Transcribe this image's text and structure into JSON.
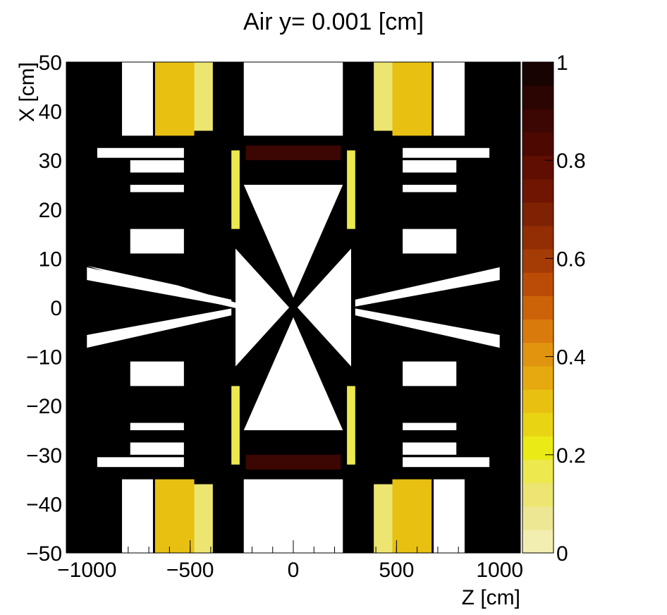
{
  "chart_data": {
    "type": "heatmap",
    "title": "Air y=  0.001 [cm]",
    "xlabel": "Z [cm]",
    "ylabel": "X [cm]",
    "xlim": [
      -1100,
      1100
    ],
    "ylim": [
      -50,
      50
    ],
    "x_ticks": [
      -1000,
      -500,
      0,
      500,
      1000
    ],
    "x_tick_labels": [
      "−1000",
      "−500",
      "0",
      "500",
      "1000"
    ],
    "y_ticks": [
      50,
      40,
      30,
      20,
      10,
      0,
      -10,
      -20,
      -30,
      -40,
      -50
    ],
    "y_tick_labels": [
      "50",
      "40",
      "30",
      "20",
      "10",
      "0",
      "−10",
      "−20",
      "−30",
      "−40",
      "−50"
    ],
    "colorbar": {
      "range": [
        0,
        1
      ],
      "ticks": [
        1,
        0.8,
        0.6,
        0.4,
        0.2,
        0
      ],
      "tick_labels": [
        "1",
        "0.8",
        "0.6",
        "0.4",
        "0.2",
        "0"
      ],
      "colors": [
        "#f2eeb0",
        "#ede793",
        "#ece571",
        "#ede84e",
        "#eaea17",
        "#e9d414",
        "#e8c012",
        "#e6a90f",
        "#e1940e",
        "#d97b0c",
        "#cd6309",
        "#bb4c07",
        "#a63c05",
        "#922d04",
        "#7e2203",
        "#6f1502",
        "#5f0e01",
        "#4d0801",
        "#3c0602",
        "#2a0502",
        "#170302"
      ]
    },
    "regions": [
      {
        "z": [
          -1100,
          1100
        ],
        "x": [
          -50,
          50
        ],
        "value": 1
      },
      {
        "z": [
          -240,
          240
        ],
        "x": [
          35,
          50
        ],
        "value": 0
      },
      {
        "z": [
          -240,
          240
        ],
        "x": [
          -50,
          -35
        ],
        "value": 0
      },
      {
        "z": [
          -670,
          -480
        ],
        "x": [
          35,
          50
        ],
        "value": 0.3
      },
      {
        "z": [
          480,
          670
        ],
        "x": [
          35,
          50
        ],
        "value": 0.3
      },
      {
        "z": [
          -670,
          -480
        ],
        "x": [
          -50,
          -35
        ],
        "value": 0.3
      },
      {
        "z": [
          480,
          670
        ],
        "x": [
          -50,
          -35
        ],
        "value": 0.3
      },
      {
        "z": [
          -830,
          -680
        ],
        "x": [
          35,
          50
        ],
        "value": 0
      },
      {
        "z": [
          680,
          830
        ],
        "x": [
          35,
          50
        ],
        "value": 0
      },
      {
        "z": [
          -830,
          -680
        ],
        "x": [
          -50,
          -35
        ],
        "value": 0
      },
      {
        "z": [
          680,
          830
        ],
        "x": [
          -50,
          -35
        ],
        "value": 0
      },
      {
        "z": [
          -480,
          -390
        ],
        "x": [
          36,
          50
        ],
        "value": 0.1
      },
      {
        "z": [
          390,
          480
        ],
        "x": [
          36,
          50
        ],
        "value": 0.1
      },
      {
        "z": [
          -480,
          -390
        ],
        "x": [
          -50,
          -36
        ],
        "value": 0.1
      },
      {
        "z": [
          390,
          480
        ],
        "x": [
          -50,
          -36
        ],
        "value": 0.1
      },
      {
        "z": [
          -950,
          -530
        ],
        "x": [
          30.5,
          32.5
        ],
        "value": 0
      },
      {
        "z": [
          530,
          950
        ],
        "x": [
          30.5,
          32.5
        ],
        "value": 0
      },
      {
        "z": [
          -950,
          -530
        ],
        "x": [
          -32.5,
          -30.5
        ],
        "value": 0
      },
      {
        "z": [
          530,
          950
        ],
        "x": [
          -32.5,
          -30.5
        ],
        "value": 0
      },
      {
        "z": [
          -790,
          -530
        ],
        "x": [
          27.5,
          30
        ],
        "value": 0
      },
      {
        "z": [
          530,
          790
        ],
        "x": [
          27.5,
          30
        ],
        "value": 0
      },
      {
        "z": [
          -790,
          -530
        ],
        "x": [
          -30,
          -27.5
        ],
        "value": 0
      },
      {
        "z": [
          530,
          790
        ],
        "x": [
          -30,
          -27.5
        ],
        "value": 0
      },
      {
        "z": [
          -790,
          -530
        ],
        "x": [
          23.5,
          25
        ],
        "value": 0
      },
      {
        "z": [
          530,
          790
        ],
        "x": [
          23.5,
          25
        ],
        "value": 0
      },
      {
        "z": [
          -790,
          -530
        ],
        "x": [
          -25,
          -23.5
        ],
        "value": 0
      },
      {
        "z": [
          530,
          790
        ],
        "x": [
          -25,
          -23.5
        ],
        "value": 0
      },
      {
        "z": [
          -790,
          -530
        ],
        "x": [
          11,
          16
        ],
        "value": 0
      },
      {
        "z": [
          530,
          790
        ],
        "x": [
          11,
          16
        ],
        "value": 0
      },
      {
        "z": [
          -790,
          -530
        ],
        "x": [
          -16,
          -11
        ],
        "value": 0
      },
      {
        "z": [
          530,
          790
        ],
        "x": [
          -16,
          -11
        ],
        "value": 0
      },
      {
        "z": [
          -300,
          -260
        ],
        "x": [
          16,
          32
        ],
        "value": 0.15
      },
      {
        "z": [
          260,
          300
        ],
        "x": [
          16,
          32
        ],
        "value": 0.15
      },
      {
        "z": [
          -300,
          -260
        ],
        "x": [
          -32,
          -16
        ],
        "value": 0.15
      },
      {
        "z": [
          260,
          300
        ],
        "x": [
          -32,
          -16
        ],
        "value": 0.15
      },
      {
        "z": [
          -230,
          230
        ],
        "x": [
          30,
          33
        ],
        "value": 0.9
      },
      {
        "z": [
          -230,
          230
        ],
        "x": [
          -33,
          -30
        ],
        "value": 0.9
      }
    ],
    "open_shapes": [
      {
        "points": [
          [
            -1000,
            8.5
          ],
          [
            -560,
            2.6
          ],
          [
            -240,
            -0.5
          ],
          [
            -240,
            0.5
          ],
          [
            -560,
            4.5
          ],
          [
            -1000,
            8.5
          ]
        ],
        "value": 0
      },
      {
        "points": [
          [
            -1000,
            8.2
          ],
          [
            -1000,
            5.6
          ],
          [
            -300,
            0.2
          ],
          [
            -300,
            1.6
          ]
        ],
        "value": 0
      },
      {
        "points": [
          [
            1000,
            -8.2
          ],
          [
            1000,
            -5.6
          ],
          [
            300,
            -0.2
          ],
          [
            300,
            -1.6
          ]
        ],
        "value": 0
      },
      {
        "points": [
          [
            -1000,
            -8.2
          ],
          [
            -1000,
            -5.6
          ],
          [
            -300,
            -0.2
          ],
          [
            -300,
            -1.6
          ]
        ],
        "value": 0
      },
      {
        "points": [
          [
            1000,
            8.2
          ],
          [
            1000,
            5.6
          ],
          [
            300,
            0.2
          ],
          [
            300,
            1.6
          ]
        ],
        "value": 0
      },
      {
        "points": [
          [
            -240,
            25
          ],
          [
            240,
            25
          ],
          [
            0,
            2
          ],
          [
            -240,
            25
          ]
        ],
        "value": 0
      },
      {
        "points": [
          [
            -240,
            -25
          ],
          [
            240,
            -25
          ],
          [
            0,
            -2
          ],
          [
            -240,
            -25
          ]
        ],
        "value": 0
      },
      {
        "points": [
          [
            -280,
            12
          ],
          [
            -280,
            -12
          ],
          [
            -20,
            0
          ]
        ],
        "value": 0
      },
      {
        "points": [
          [
            280,
            12
          ],
          [
            280,
            -12
          ],
          [
            20,
            0
          ]
        ],
        "value": 0
      }
    ],
    "grid": false,
    "legend": "colorbar-right"
  }
}
